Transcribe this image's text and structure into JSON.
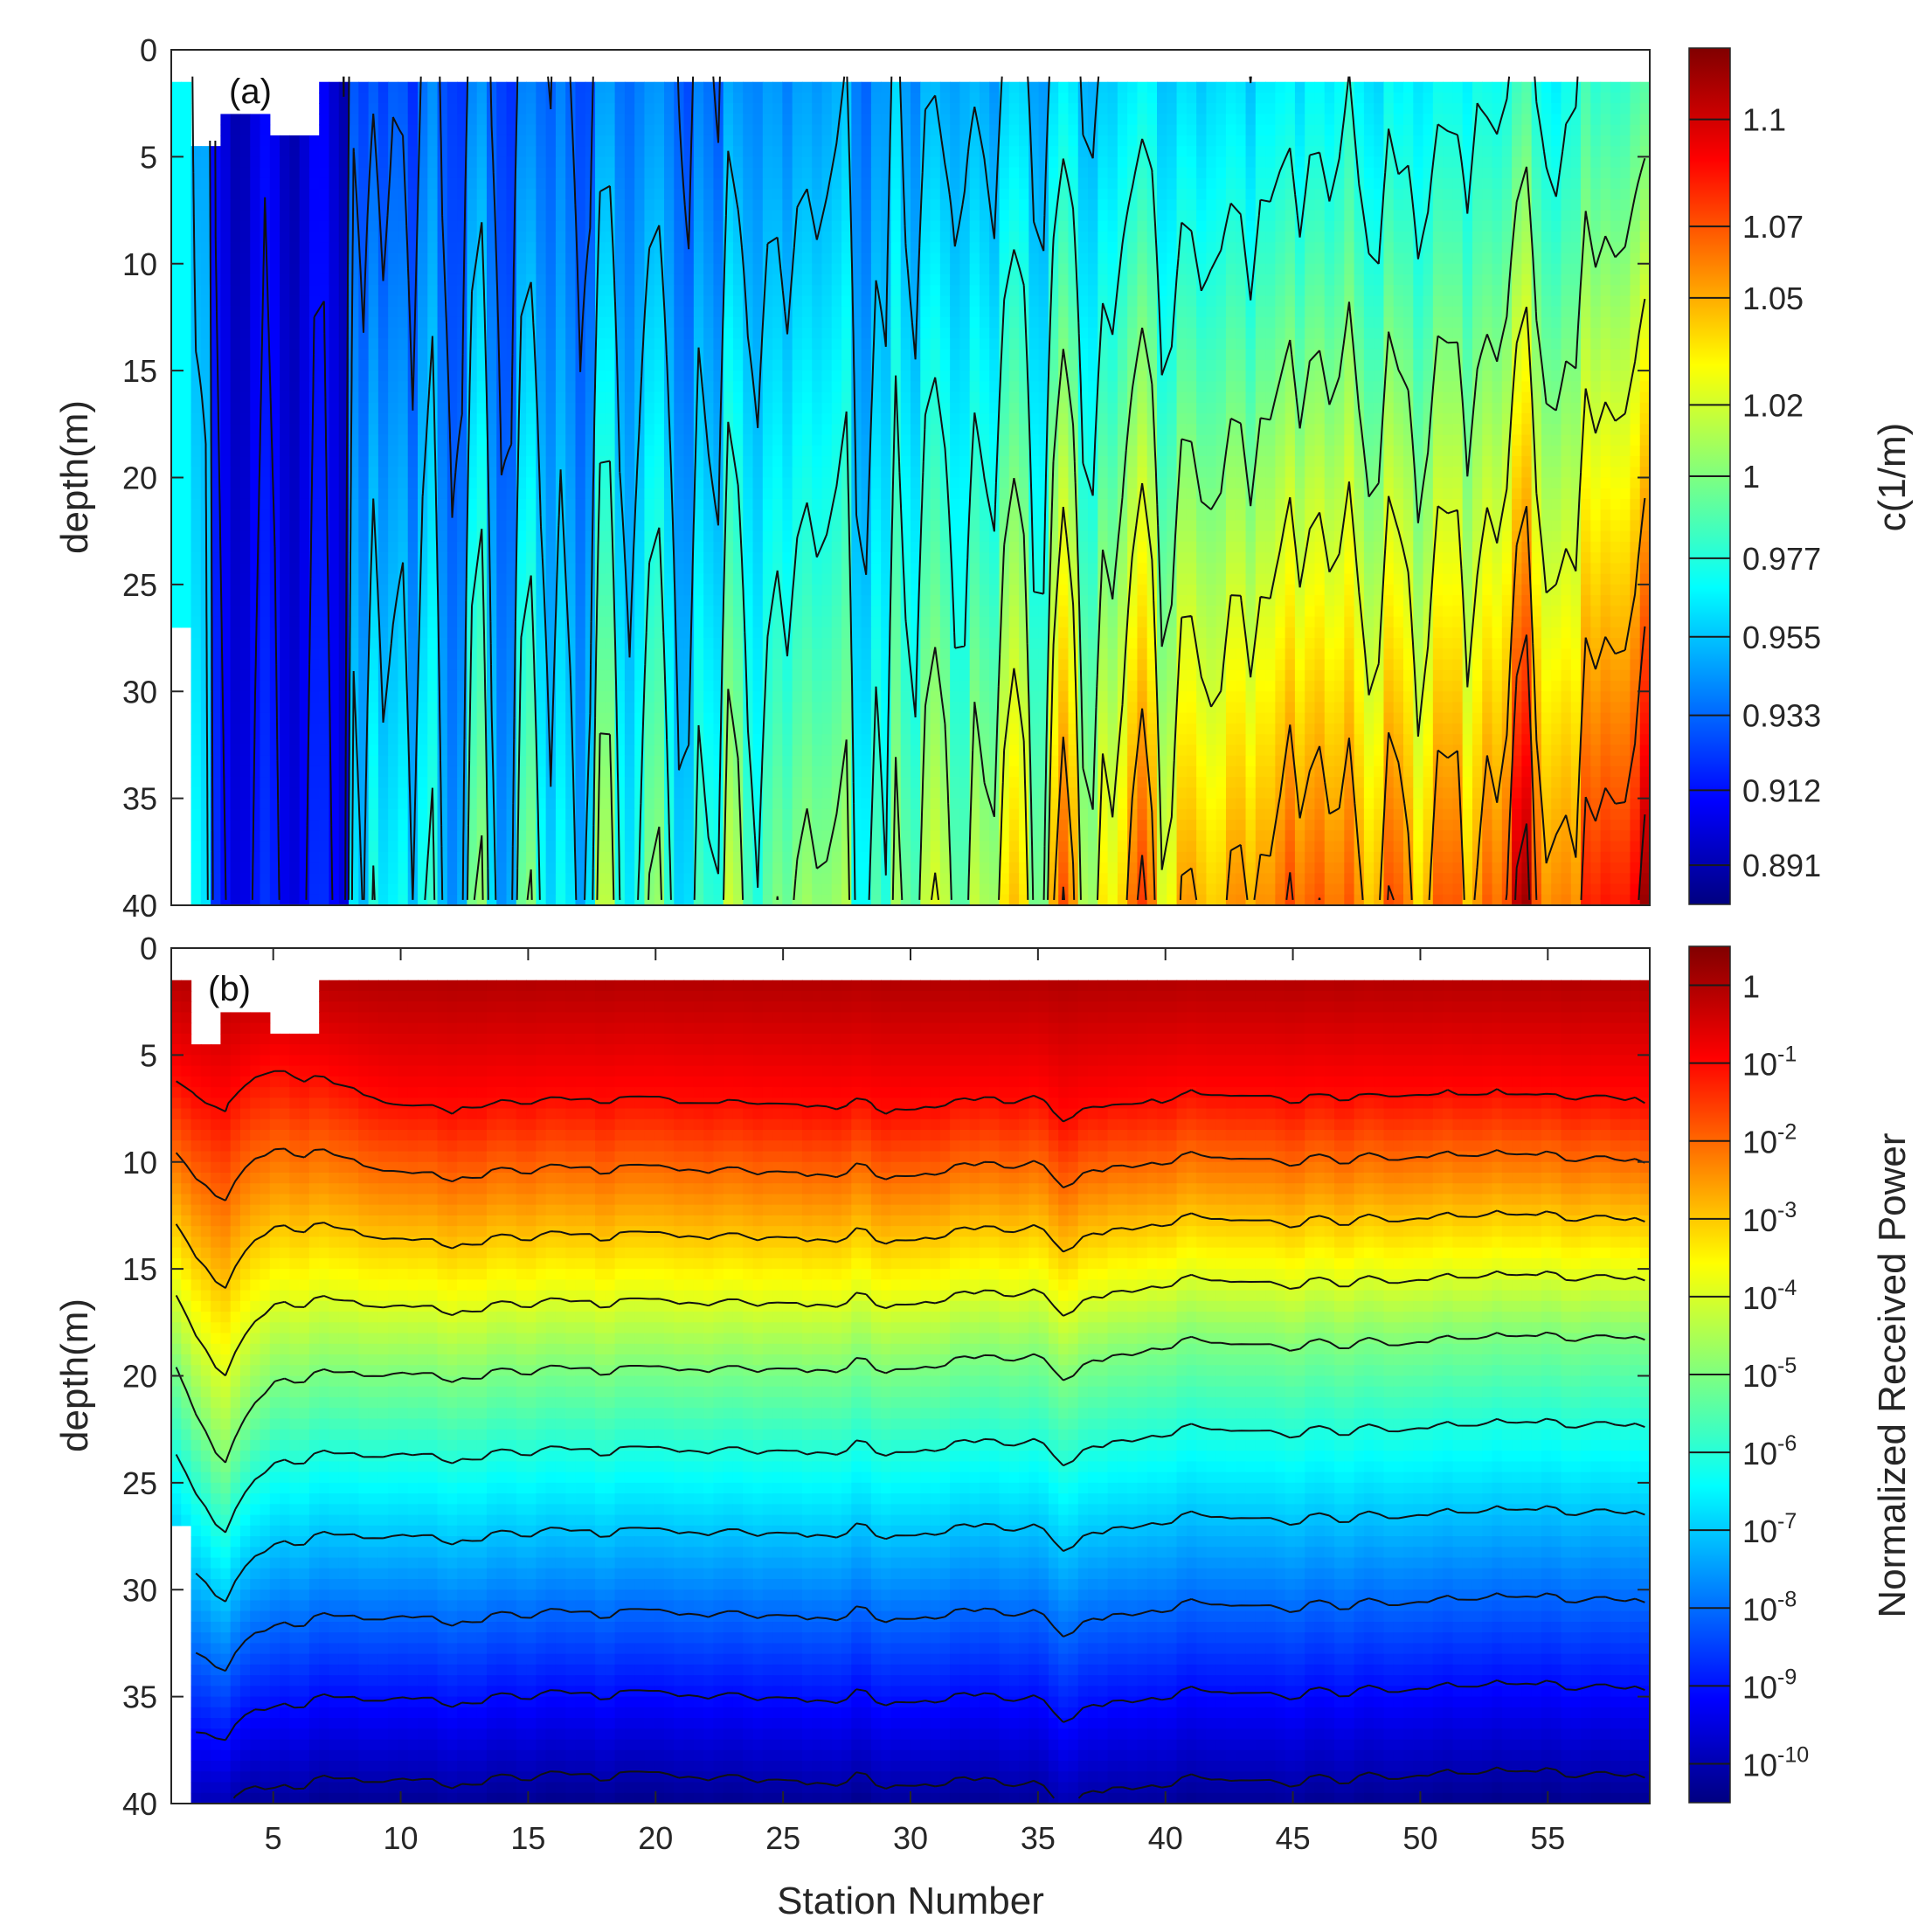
{
  "chart_data": [
    {
      "panel": "a",
      "type": "heatmap",
      "panel_label": "(a)",
      "title": "",
      "xlabel": "",
      "ylabel": "depth(m)",
      "xlim": [
        1,
        59
      ],
      "ylim": [
        0,
        40
      ],
      "y_reversed": true,
      "y_ticks": [
        "0",
        "5",
        "10",
        "15",
        "20",
        "25",
        "30",
        "35",
        "40"
      ],
      "colorbar": {
        "label": "c(1/m)",
        "range": [
          0.88,
          1.12
        ],
        "ticks": [
          "1.1",
          "1.07",
          "1.05",
          "1.02",
          "1",
          "0.977",
          "0.955",
          "0.933",
          "0.912",
          "0.891"
        ],
        "tick_values": [
          1.1,
          1.07,
          1.05,
          1.02,
          1.0,
          0.977,
          0.955,
          0.933,
          0.912,
          0.891
        ],
        "colormap": "jet"
      },
      "description_values": {
        "stations": [
          1,
          5,
          10,
          15,
          20,
          25,
          30,
          35,
          40,
          45,
          50,
          55,
          59
        ],
        "surface_c": [
          0.95,
          0.9,
          0.93,
          0.935,
          0.94,
          0.945,
          0.95,
          0.955,
          0.96,
          0.965,
          0.97,
          0.975,
          0.98
        ],
        "bottom_c": [
          0.96,
          0.9,
          0.96,
          0.98,
          0.99,
          1.0,
          1.01,
          1.03,
          1.05,
          1.06,
          1.07,
          1.08,
          1.09
        ]
      },
      "grid": false
    },
    {
      "panel": "b",
      "type": "heatmap",
      "panel_label": "(b)",
      "title": "",
      "xlabel": "Station Number",
      "ylabel": "depth(m)",
      "xlim": [
        1,
        59
      ],
      "ylim": [
        0,
        40
      ],
      "y_reversed": true,
      "x_ticks": [
        "5",
        "10",
        "15",
        "20",
        "25",
        "30",
        "35",
        "40",
        "45",
        "50",
        "55"
      ],
      "y_ticks": [
        "0",
        "5",
        "10",
        "15",
        "20",
        "25",
        "30",
        "35",
        "40"
      ],
      "colorbar": {
        "label": "Normalized Received Power",
        "scale": "log",
        "range_exponent": [
          -10.5,
          0.5
        ],
        "ticks": [
          {
            "base": "1",
            "exp": ""
          },
          {
            "base": "10",
            "exp": "-1"
          },
          {
            "base": "10",
            "exp": "-2"
          },
          {
            "base": "10",
            "exp": "-3"
          },
          {
            "base": "10",
            "exp": "-4"
          },
          {
            "base": "10",
            "exp": "-5"
          },
          {
            "base": "10",
            "exp": "-6"
          },
          {
            "base": "10",
            "exp": "-7"
          },
          {
            "base": "10",
            "exp": "-8"
          },
          {
            "base": "10",
            "exp": "-9"
          },
          {
            "base": "10",
            "exp": "-10"
          }
        ],
        "tick_exponents": [
          0,
          -1,
          -2,
          -3,
          -4,
          -5,
          -6,
          -7,
          -8,
          -9,
          -10
        ],
        "colormap": "jet"
      },
      "contour_levels_exponent": [
        -1,
        -2,
        -3,
        -4,
        -5,
        -6,
        -7,
        -8,
        -9,
        -10
      ],
      "approx_contour_depth_m": {
        "stations": [
          1,
          3,
          5,
          10,
          20,
          30,
          35,
          36,
          40,
          50,
          59
        ],
        "level_-1": [
          6,
          7.5,
          5.5,
          7.5,
          7,
          7.5,
          7,
          8,
          7,
          7,
          7
        ],
        "level_-5": [
          19,
          24,
          20,
          20,
          19.5,
          19.5,
          19,
          20,
          18.5,
          18.5,
          18
        ],
        "level_-10": [
          40,
          40,
          39,
          39,
          38.5,
          39,
          39,
          40,
          39,
          38.8,
          38.5
        ]
      },
      "grid": false
    }
  ],
  "colors": {
    "jet": [
      "#000080",
      "#0000ff",
      "#00ffff",
      "#ffff00",
      "#ff0000",
      "#800000"
    ],
    "contour": "#111111",
    "axis": "#262626"
  }
}
